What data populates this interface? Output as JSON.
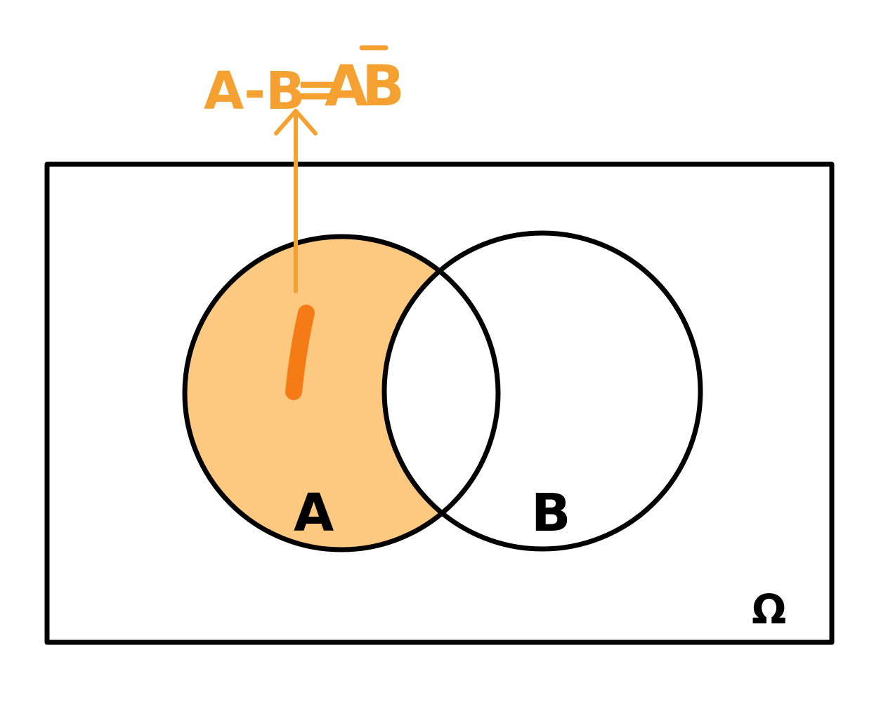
{
  "diagram": {
    "formula": {
      "lhs": "A-B",
      "equals": "=",
      "rhs_a": "A",
      "rhs_b": "B"
    },
    "labels": {
      "set_a": "A",
      "set_b": "B",
      "universe": "Ω"
    },
    "colors": {
      "outline": "#000000",
      "fill_a_minus_b": "#fdc880",
      "annotation": "#f5a132",
      "brush_stroke": "#f57b17"
    }
  }
}
